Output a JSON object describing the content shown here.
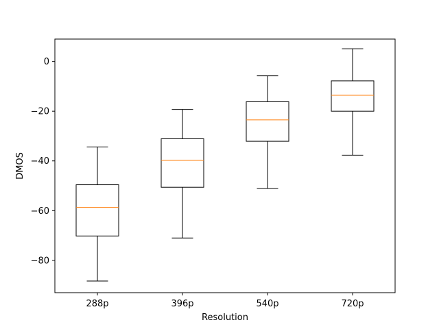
{
  "chart_data": {
    "type": "box",
    "xlabel": "Resolution",
    "ylabel": "DMOS",
    "ylim": [
      -93,
      9
    ],
    "yticks": [
      0,
      -20,
      -40,
      -60,
      -80
    ],
    "ytick_labels": [
      "0",
      "−20",
      "−40",
      "−60",
      "−80"
    ],
    "categories": [
      "288p",
      "396p",
      "540p",
      "720p"
    ],
    "boxes": [
      {
        "category": "288p",
        "whisker_low": -88.3,
        "q1": -70.2,
        "median": -58.7,
        "q3": -49.6,
        "whisker_high": -34.4
      },
      {
        "category": "396p",
        "whisker_low": -71.0,
        "q1": -50.6,
        "median": -39.8,
        "q3": -31.1,
        "whisker_high": -19.3
      },
      {
        "category": "540p",
        "whisker_low": -51.1,
        "q1": -32.1,
        "median": -23.5,
        "q3": -16.2,
        "whisker_high": -5.8
      },
      {
        "category": "720p",
        "whisker_low": -37.7,
        "q1": -20.0,
        "median": -13.6,
        "q3": -7.8,
        "whisker_high": 5.1
      }
    ],
    "grid": false,
    "colors": {
      "box": "#000000",
      "median": "#ff7f0e",
      "axis": "#000000"
    }
  }
}
